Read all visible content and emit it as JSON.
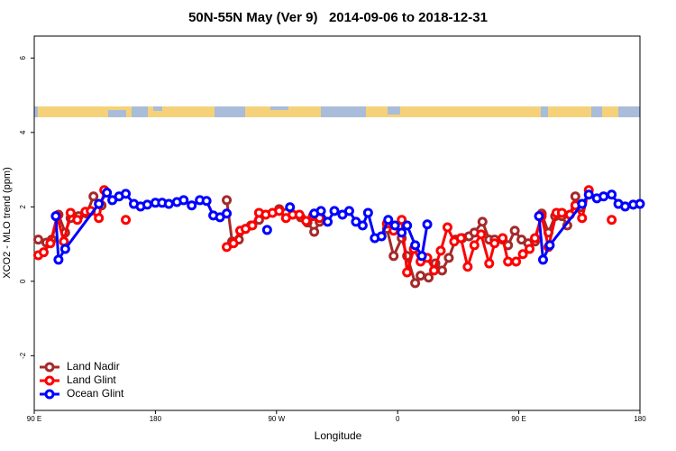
{
  "chart_data": {
    "type": "line",
    "title": "50N-55N May (Ver 9)   2014-09-06 to 2018-12-31",
    "x_label": "Longitude",
    "y_label": "XCO2 - MLO trend (ppm)",
    "xlim": [
      90,
      540
    ],
    "xticks": [
      {
        "value": 90,
        "label": "90 E"
      },
      180,
      {
        "value": 270,
        "label": "90 W"
      },
      {
        "value": 360,
        "label": "0"
      },
      {
        "value": 450,
        "label": "90 E"
      },
      {
        "value": 540,
        "label": "180"
      }
    ],
    "ylim": [
      -3.47,
      6.59
    ],
    "yticks": [
      -2,
      0,
      2,
      4,
      6
    ],
    "legend": "bottom-left",
    "series": [
      {
        "name": "Land Nadir",
        "color": "#a52a2a",
        "x": [
          93,
          99,
          103,
          108,
          113,
          117,
          123,
          129,
          134,
          140,
          null,
          233,
          237,
          242,
          247,
          251,
          257,
          272,
          277,
          288,
          293,
          298,
          302,
          null,
          352,
          357,
          363,
          367,
          373,
          377,
          383,
          388,
          393,
          398,
          403,
          408,
          413,
          417,
          423,
          428,
          432,
          438,
          442,
          447,
          452,
          457,
          462,
          467,
          472,
          477,
          482,
          486,
          492,
          496
        ],
        "values": [
          1.12,
          1.04,
          1.12,
          1.79,
          1.31,
          1.7,
          1.75,
          1.82,
          2.28,
          2.04,
          null,
          2.18,
          1.07,
          1.12,
          1.41,
          1.5,
          1.65,
          1.94,
          1.84,
          1.72,
          1.58,
          1.33,
          1.6,
          null,
          1.41,
          0.68,
          1.16,
          0.68,
          -0.05,
          0.15,
          0.1,
          0.48,
          0.29,
          0.63,
          1.12,
          1.16,
          1.21,
          1.31,
          1.6,
          1.12,
          1.12,
          1.12,
          0.97,
          1.36,
          1.12,
          1.02,
          1.07,
          1.82,
          1.31,
          1.75,
          1.75,
          1.5,
          2.28,
          1.99
        ]
      },
      {
        "name": "Land Glint",
        "color": "#ff0000",
        "x": [
          93,
          97,
          102,
          107,
          112,
          117,
          122,
          128,
          132,
          138,
          142,
          null,
          158,
          null,
          233,
          238,
          243,
          247,
          252,
          257,
          262,
          267,
          272,
          277,
          282,
          287,
          292,
          297,
          302,
          null,
          352,
          357,
          363,
          367,
          372,
          377,
          382,
          387,
          392,
          397,
          402,
          407,
          412,
          417,
          422,
          428,
          432,
          438,
          442,
          448,
          453,
          458,
          462,
          467,
          472,
          478,
          482,
          488,
          492,
          497,
          502,
          null,
          519
        ],
        "values": [
          0.7,
          0.78,
          1.02,
          1.75,
          1.07,
          1.84,
          1.65,
          1.87,
          1.89,
          1.7,
          2.45,
          null,
          1.65,
          null,
          0.92,
          1.02,
          1.36,
          1.41,
          1.5,
          1.84,
          1.79,
          1.84,
          1.89,
          1.7,
          1.79,
          1.79,
          1.62,
          1.75,
          1.7,
          null,
          1.55,
          1.36,
          1.65,
          0.24,
          0.87,
          0.53,
          0.63,
          0.29,
          0.82,
          1.45,
          1.07,
          1.16,
          0.39,
          0.97,
          1.26,
          0.48,
          1.02,
          1.16,
          0.53,
          0.53,
          0.73,
          0.87,
          1.16,
          1.75,
          0.92,
          1.84,
          1.84,
          1.79,
          2.04,
          1.7,
          2.45,
          null,
          1.65
        ]
      },
      {
        "name": "Ocean Glint",
        "color": "#0000ff",
        "x": [
          106,
          108,
          113,
          138,
          144,
          148,
          153,
          158,
          164,
          169,
          174,
          180,
          185,
          190,
          196,
          201,
          207,
          213,
          218,
          223,
          228,
          233,
          null,
          263,
          null,
          280,
          null,
          298,
          303,
          308,
          313,
          319,
          324,
          329,
          334,
          338,
          343,
          348,
          353,
          358,
          363,
          367,
          373,
          378,
          382,
          null,
          465,
          468,
          473,
          497,
          502,
          508,
          513,
          519,
          524,
          529,
          535,
          540
        ],
        "values": [
          1.75,
          0.58,
          0.87,
          2.08,
          2.38,
          2.18,
          2.28,
          2.35,
          2.08,
          2.01,
          2.06,
          2.11,
          2.11,
          2.08,
          2.13,
          2.18,
          2.04,
          2.18,
          2.16,
          1.77,
          1.72,
          1.82,
          null,
          1.38,
          null,
          1.99,
          null,
          1.82,
          1.89,
          1.6,
          1.89,
          1.79,
          1.89,
          1.6,
          1.5,
          1.84,
          1.16,
          1.21,
          1.65,
          1.5,
          1.31,
          1.5,
          0.97,
          0.68,
          1.53,
          null,
          1.75,
          0.58,
          0.97,
          2.08,
          2.33,
          2.23,
          2.28,
          2.33,
          2.08,
          2.01,
          2.06,
          2.08
        ]
      }
    ]
  }
}
